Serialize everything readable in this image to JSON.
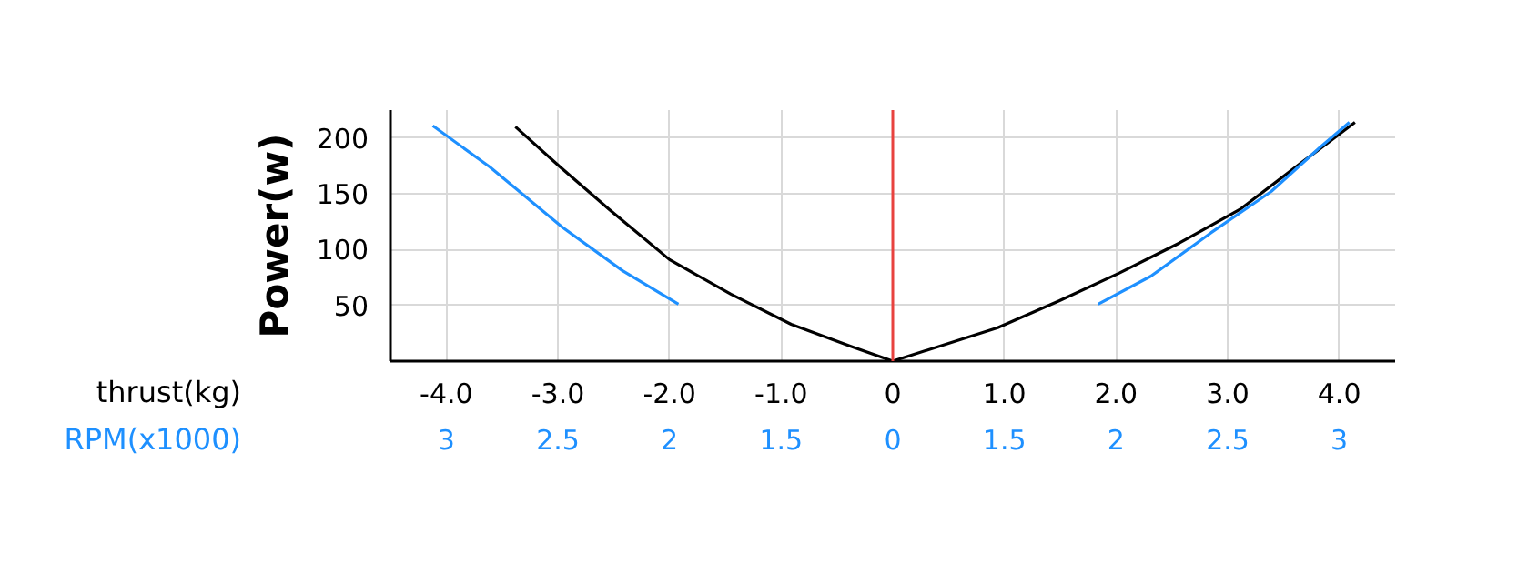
{
  "chart_data": {
    "type": "line",
    "xlabel": "thrust(kg)",
    "ylabel": "Power(w)",
    "annotations": [
      "RPM(x1000)",
      "3",
      "2.5",
      "2",
      "1.5",
      "0",
      "1.5",
      "2",
      "2.5",
      "3"
    ],
    "xlim": [
      -4.5,
      4.5
    ],
    "xticks": [
      {
        "value": -4,
        "label": "-4.0"
      },
      {
        "value": -3,
        "label": "-3.0"
      },
      {
        "value": -2,
        "label": "-2.0"
      },
      {
        "value": -1,
        "label": "-1.0"
      },
      0,
      {
        "value": 1,
        "label": "1.0"
      },
      {
        "value": 2,
        "label": "2.0"
      },
      {
        "value": 3,
        "label": "3.0"
      },
      {
        "value": 4,
        "label": "4.0"
      }
    ],
    "ylim": [
      0,
      225
    ],
    "yticks": [
      50,
      100,
      150,
      200
    ],
    "grid": true,
    "series": [
      {
        "color": "#000000",
        "x": [
          -3.38,
          -2.98,
          -2.54,
          -2.0,
          -1.45,
          -0.91,
          -0.37,
          0,
          0.94,
          1.49,
          2.03,
          2.57,
          3.11,
          3.65,
          4.14
        ],
        "values": [
          210,
          174,
          136,
          91,
          60,
          33,
          13,
          0,
          30,
          54,
          79,
          106,
          136,
          177,
          214
        ]
      },
      {
        "color": "#1e90ff",
        "x": [
          -4.12,
          -3.61,
          -2.96,
          -2.42,
          -1.92
        ],
        "values": [
          211,
          174,
          120,
          81,
          51
        ]
      },
      {
        "color": "#1e90ff",
        "x": [
          1.84,
          2.31,
          2.85,
          3.39,
          3.82,
          4.09
        ],
        "values": [
          51,
          76,
          115,
          152,
          191,
          214
        ]
      }
    ],
    "ref_lines": [
      {
        "axis": "x",
        "value": 0,
        "color": "#e8423f"
      }
    ]
  }
}
